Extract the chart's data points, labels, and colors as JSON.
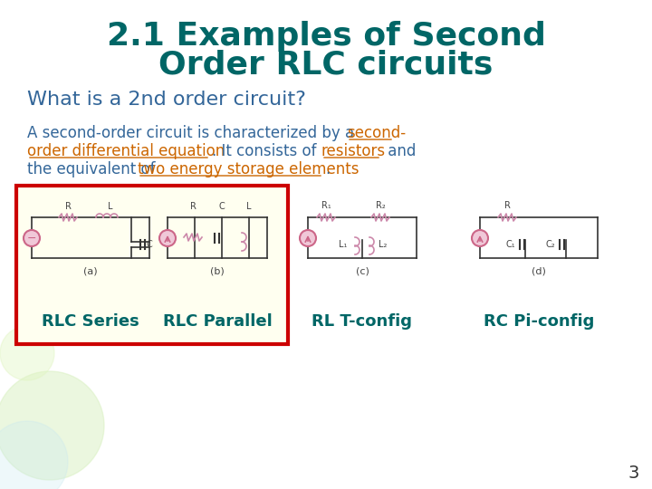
{
  "title_line1": "2.1 Examples of Second",
  "title_line2": "Order RLC circuits",
  "title_color": "#006666",
  "subtitle": "What is a 2nd order circuit?",
  "subtitle_color": "#336699",
  "underline_color": "#cc6600",
  "body_color": "#336699",
  "label_rlc_series": "RLC Series",
  "label_rlc_parallel": "RLC Parallel",
  "label_rl_t": "RL T-config",
  "label_rc_pi": "RC Pi-config",
  "label_color": "#006666",
  "page_number": "3",
  "bg_color": "#ffffff",
  "circuit_box_border": "#cc0000",
  "circuit_box_bg": "#fffff0"
}
